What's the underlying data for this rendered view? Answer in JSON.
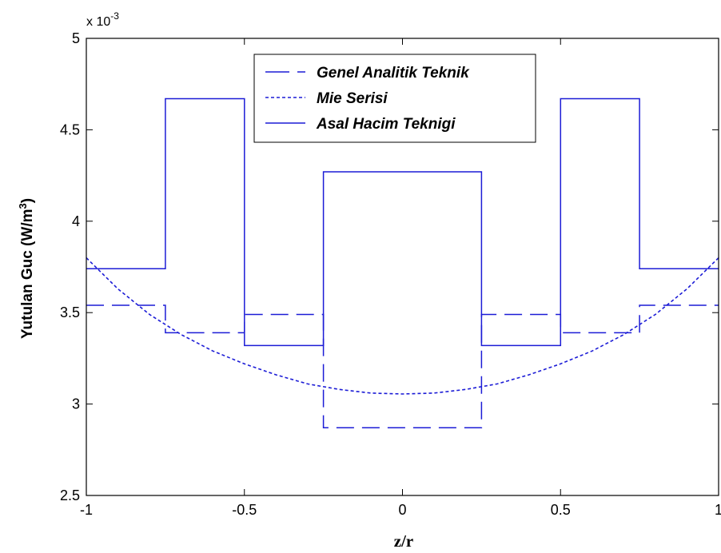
{
  "chart_data": {
    "type": "line",
    "title": "",
    "xlabel": "z/r",
    "ylabel_main": "Yutulan Guc (W/m",
    "ylabel_sup": "3",
    "ylabel_close": ")",
    "y_multiplier_base": "x 10",
    "y_multiplier_exp": "-3",
    "xlim": [
      -1,
      1
    ],
    "ylim": [
      2.5,
      5.0
    ],
    "y_scale": 0.001,
    "x_ticks": [
      "-1",
      "-0.5",
      "0",
      "0.5",
      "1"
    ],
    "y_ticks": [
      "2.5",
      "3",
      "3.5",
      "4",
      "4.5",
      "5"
    ],
    "legend_position": "top-center",
    "grid": false,
    "color": "#1c1cd6",
    "series": [
      {
        "name": "Genel Analitik Teknik",
        "style": "dashed",
        "step_edges": [
          -1,
          -0.75,
          -0.5,
          -0.25,
          0.25,
          0.5,
          0.75,
          1
        ],
        "step_values": [
          3.54,
          3.39,
          3.49,
          2.87,
          3.49,
          3.39,
          3.54
        ]
      },
      {
        "name": "Mie Serisi",
        "style": "dotted",
        "x": [
          -1,
          -0.9,
          -0.8,
          -0.7,
          -0.6,
          -0.5,
          -0.4,
          -0.3,
          -0.2,
          -0.1,
          0,
          0.1,
          0.2,
          0.3,
          0.4,
          0.5,
          0.6,
          0.7,
          0.8,
          0.9,
          1
        ],
        "y": [
          3.8,
          3.63,
          3.49,
          3.38,
          3.29,
          3.22,
          3.16,
          3.11,
          3.08,
          3.06,
          3.055,
          3.06,
          3.08,
          3.11,
          3.16,
          3.22,
          3.29,
          3.38,
          3.49,
          3.63,
          3.8
        ]
      },
      {
        "name": "Asal Hacim Teknigi",
        "style": "solid",
        "step_edges": [
          -1,
          -0.75,
          -0.5,
          -0.25,
          0.25,
          0.5,
          0.75,
          1
        ],
        "step_values": [
          3.74,
          4.67,
          3.32,
          4.27,
          3.32,
          4.67,
          3.74
        ]
      }
    ]
  }
}
